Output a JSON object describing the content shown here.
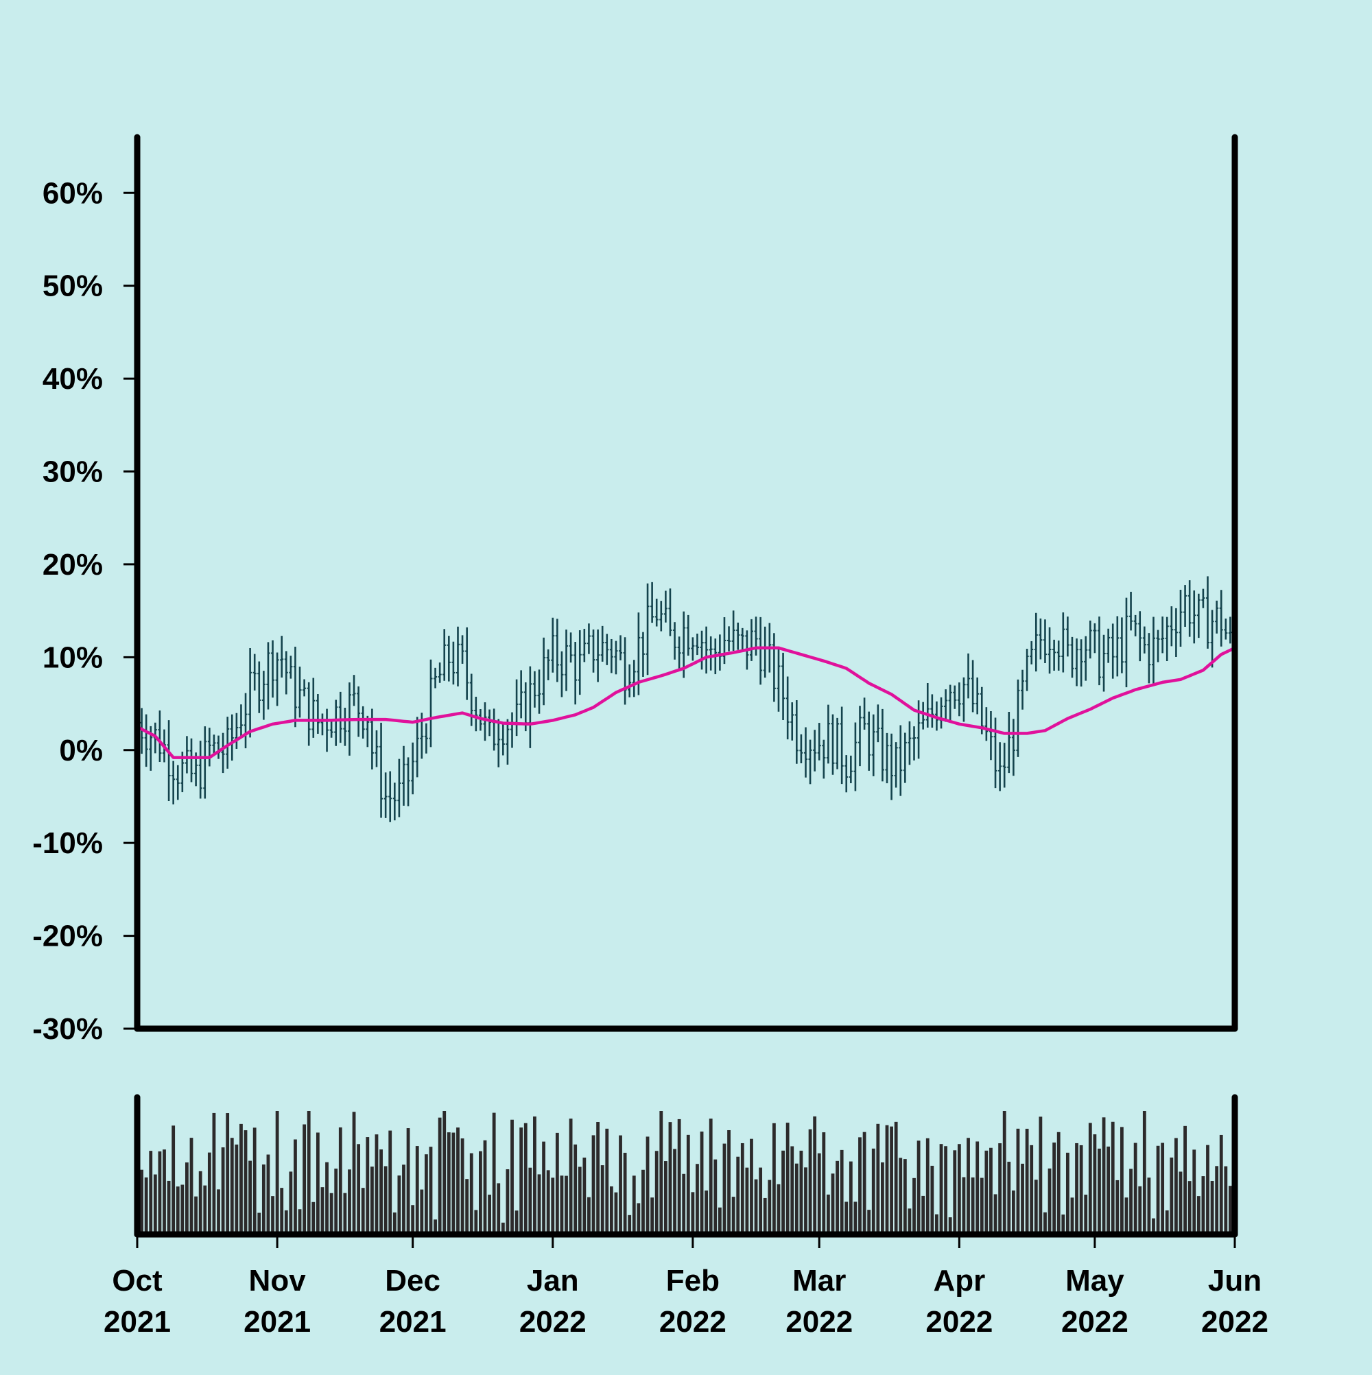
{
  "chart_data": [
    {
      "type": "ohlc",
      "colors": {
        "background": "#c9eded",
        "bar": "#14434d",
        "moving_average": "#e0119b",
        "axis": "#000000"
      },
      "title": "",
      "xlabel": "",
      "ylabel": "",
      "y_unit": "%",
      "ylim": [
        -30,
        66
      ],
      "y_ticks": [
        -30,
        -20,
        -10,
        0,
        10,
        20,
        30,
        40,
        50,
        60
      ],
      "y_tick_labels": [
        "-30%",
        "-20%",
        "-10%",
        "0%",
        "10%",
        "20%",
        "30%",
        "40%",
        "50%",
        "60%"
      ],
      "x_range": [
        "2021-10-01",
        "2022-06-01"
      ],
      "x_ticks": [
        "2021-10-01",
        "2021-11-01",
        "2021-12-01",
        "2022-01-01",
        "2022-02-01",
        "2022-03-01",
        "2022-04-01",
        "2022-05-01",
        "2022-06-01"
      ],
      "x_tick_labels": [
        [
          "Oct",
          "2021"
        ],
        [
          "Nov",
          "2021"
        ],
        [
          "Dec",
          "2021"
        ],
        [
          "Jan",
          "2022"
        ],
        [
          "Feb",
          "2022"
        ],
        [
          "Mar",
          "2022"
        ],
        [
          "Apr",
          "2022"
        ],
        [
          "May",
          "2022"
        ],
        [
          "Jun",
          "2022"
        ]
      ],
      "close_path": [
        [
          "2021-10-01",
          3
        ],
        [
          "2021-10-06",
          1
        ],
        [
          "2021-10-10",
          -2
        ],
        [
          "2021-10-14",
          -3
        ],
        [
          "2021-10-17",
          0
        ],
        [
          "2021-10-21",
          0
        ],
        [
          "2021-10-24",
          4
        ],
        [
          "2021-10-27",
          7
        ],
        [
          "2021-10-31",
          10
        ],
        [
          "2021-11-02",
          10
        ],
        [
          "2021-11-04",
          7
        ],
        [
          "2021-11-07",
          5
        ],
        [
          "2021-11-10",
          3
        ],
        [
          "2021-11-14",
          4
        ],
        [
          "2021-11-18",
          5
        ],
        [
          "2021-11-21",
          4
        ],
        [
          "2021-11-22",
          0
        ],
        [
          "2021-11-25",
          -5
        ],
        [
          "2021-11-28",
          -5
        ],
        [
          "2021-11-30",
          -3
        ],
        [
          "2021-12-02",
          0
        ],
        [
          "2021-12-06",
          7
        ],
        [
          "2021-12-09",
          10
        ],
        [
          "2021-12-12",
          9
        ],
        [
          "2021-12-15",
          5
        ],
        [
          "2021-12-18",
          1
        ],
        [
          "2021-12-20",
          3
        ],
        [
          "2021-12-24",
          3
        ],
        [
          "2021-12-28",
          7
        ],
        [
          "2022-01-01",
          10
        ],
        [
          "2022-01-04",
          10
        ],
        [
          "2022-01-07",
          9
        ],
        [
          "2022-01-10",
          11
        ],
        [
          "2022-01-14",
          11
        ],
        [
          "2022-01-17",
          9
        ],
        [
          "2022-01-21",
          12
        ],
        [
          "2022-01-24",
          15
        ],
        [
          "2022-01-27",
          12
        ],
        [
          "2022-01-30",
          13
        ],
        [
          "2022-02-02",
          13
        ],
        [
          "2022-02-05",
          10
        ],
        [
          "2022-02-08",
          12
        ],
        [
          "2022-02-12",
          11
        ],
        [
          "2022-02-15",
          12
        ],
        [
          "2022-02-18",
          9
        ],
        [
          "2022-02-21",
          6
        ],
        [
          "2022-02-24",
          2
        ],
        [
          "2022-02-28",
          1
        ],
        [
          "2022-03-04",
          1
        ],
        [
          "2022-03-07",
          -1
        ],
        [
          "2022-03-11",
          2
        ],
        [
          "2022-03-14",
          0
        ],
        [
          "2022-03-18",
          -2
        ],
        [
          "2022-03-22",
          1
        ],
        [
          "2022-03-25",
          3
        ],
        [
          "2022-03-29",
          7
        ],
        [
          "2022-04-02",
          7
        ],
        [
          "2022-04-05",
          4
        ],
        [
          "2022-04-08",
          0
        ],
        [
          "2022-04-10",
          -3
        ],
        [
          "2022-04-13",
          2
        ],
        [
          "2022-04-16",
          8
        ],
        [
          "2022-04-19",
          12
        ],
        [
          "2022-04-22",
          13
        ],
        [
          "2022-04-25",
          10
        ],
        [
          "2022-04-28",
          12
        ],
        [
          "2022-05-02",
          10
        ],
        [
          "2022-05-05",
          10
        ],
        [
          "2022-05-09",
          13
        ],
        [
          "2022-05-12",
          11
        ],
        [
          "2022-05-15",
          11
        ],
        [
          "2022-05-18",
          14
        ],
        [
          "2022-05-21",
          16
        ],
        [
          "2022-05-24",
          14
        ],
        [
          "2022-05-27",
          14
        ],
        [
          "2022-05-29",
          14
        ],
        [
          "2022-06-01",
          10
        ]
      ],
      "moving_average": [
        [
          "2021-10-01",
          2.5
        ],
        [
          "2021-10-05",
          1.5
        ],
        [
          "2021-10-09",
          -0.8
        ],
        [
          "2021-10-13",
          -0.8
        ],
        [
          "2021-10-17",
          -0.8
        ],
        [
          "2021-10-21",
          0.5
        ],
        [
          "2021-10-26",
          2
        ],
        [
          "2021-10-31",
          2.8
        ],
        [
          "2021-11-05",
          3.2
        ],
        [
          "2021-11-12",
          3.2
        ],
        [
          "2021-11-19",
          3.3
        ],
        [
          "2021-11-25",
          3.3
        ],
        [
          "2021-12-01",
          3
        ],
        [
          "2021-12-06",
          3.5
        ],
        [
          "2021-12-12",
          4
        ],
        [
          "2021-12-16",
          3.4
        ],
        [
          "2021-12-21",
          2.9
        ],
        [
          "2021-12-27",
          2.8
        ],
        [
          "2022-01-01",
          3.2
        ],
        [
          "2022-01-06",
          3.8
        ],
        [
          "2022-01-10",
          4.6
        ],
        [
          "2022-01-15",
          6.2
        ],
        [
          "2022-01-20",
          7.3
        ],
        [
          "2022-01-25",
          8
        ],
        [
          "2022-01-30",
          8.8
        ],
        [
          "2022-02-04",
          10
        ],
        [
          "2022-02-10",
          10.5
        ],
        [
          "2022-02-15",
          11
        ],
        [
          "2022-02-20",
          11
        ],
        [
          "2022-02-25",
          10.3
        ],
        [
          "2022-03-02",
          9.6
        ],
        [
          "2022-03-07",
          8.8
        ],
        [
          "2022-03-12",
          7.2
        ],
        [
          "2022-03-17",
          6
        ],
        [
          "2022-03-22",
          4.3
        ],
        [
          "2022-03-27",
          3.5
        ],
        [
          "2022-04-01",
          2.8
        ],
        [
          "2022-04-06",
          2.4
        ],
        [
          "2022-04-11",
          1.8
        ],
        [
          "2022-04-16",
          1.8
        ],
        [
          "2022-04-20",
          2.1
        ],
        [
          "2022-04-25",
          3.4
        ],
        [
          "2022-04-30",
          4.4
        ],
        [
          "2022-05-05",
          5.6
        ],
        [
          "2022-05-10",
          6.5
        ],
        [
          "2022-05-16",
          7.3
        ],
        [
          "2022-05-20",
          7.6
        ],
        [
          "2022-05-25",
          8.6
        ],
        [
          "2022-05-29",
          10.3
        ],
        [
          "2022-06-01",
          11
        ]
      ],
      "volume_panel": {
        "type": "bar",
        "color": "#2c2a2b",
        "note_levels": "relative",
        "samples": [
          0.95,
          0.6,
          0.5,
          0.75,
          0.45,
          0.78,
          0.83,
          0.52,
          0.95,
          0.25,
          0.42,
          0.68,
          0.79,
          0.24,
          0.58,
          0.25,
          0.67,
          0.84,
          0.24,
          0.82,
          0.92,
          0.73,
          0.86,
          0.78,
          0.79,
          0.53,
          0.74,
          0.22,
          0.56,
          0.73,
          0.43,
          0.91,
          0.46,
          0.24,
          0.6,
          0.82,
          0.2,
          0.77,
          0.88,
          0.41,
          0.85,
          0.37,
          0.66,
          0.44,
          0.54,
          0.82,
          0.33,
          0.62
        ]
      }
    }
  ]
}
